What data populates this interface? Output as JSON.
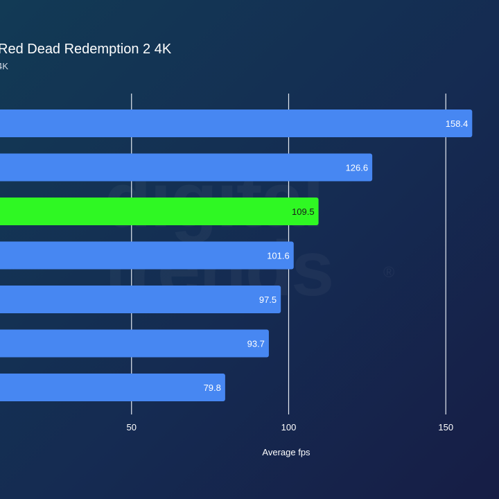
{
  "chart_data": {
    "type": "bar",
    "orientation": "horizontal",
    "title": "Red Dead Redemption 2 4K",
    "subtitle": "4K",
    "xlabel": "Average fps",
    "ylabel": "",
    "xlim": [
      0,
      175
    ],
    "xticks": [
      50,
      100,
      150
    ],
    "grid": true,
    "values": [
      158.4,
      126.6,
      109.5,
      101.6,
      97.5,
      93.7,
      79.8
    ],
    "highlight_index": 2
  },
  "colors": {
    "bar": "#4787f2",
    "highlight": "#2ff823",
    "grid": "#e6ebf2",
    "label_light": "#ffffff",
    "label_dark": "#1a1a1a"
  },
  "watermark": "digitaltrends"
}
